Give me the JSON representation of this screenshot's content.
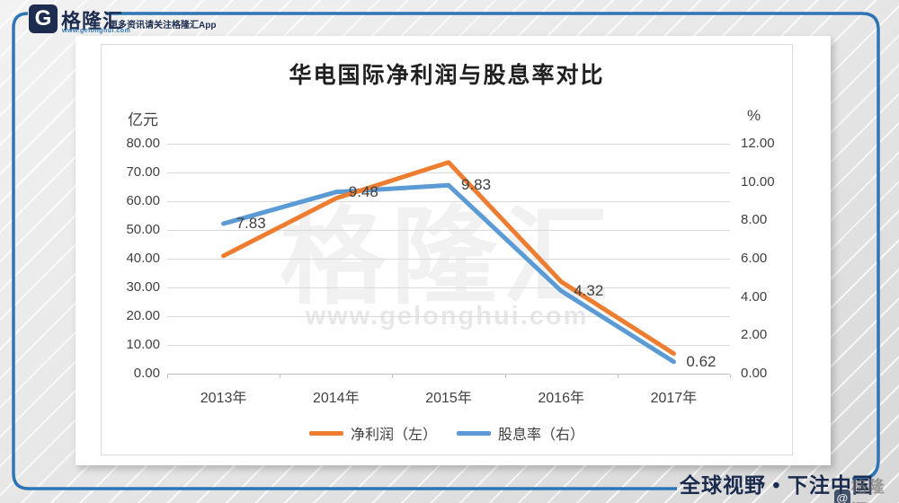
{
  "page": {
    "frame_color": "#2e75b6",
    "background": "#e7e7e7"
  },
  "header": {
    "logo_letter": "G",
    "brand": "格隆汇",
    "brand_url": "www.gelonghui.com",
    "tagline": "更多资讯请关注格隆汇App"
  },
  "watermark": {
    "brand": "格隆汇",
    "url": "www.gelonghui.com"
  },
  "footer": {
    "slogan": "全球视野 • 下注中国",
    "stamp_at": "@",
    "stamp_brand": "格隆汇"
  },
  "chart_data": {
    "type": "line",
    "title": "华电国际净利润与股息率对比",
    "categories": [
      "2013年",
      "2014年",
      "2015年",
      "2016年",
      "2017年"
    ],
    "series": [
      {
        "name": "净利润（左）",
        "axis": "left",
        "color": "#ED7D31",
        "values": [
          41.0,
          61.0,
          73.5,
          32.0,
          7.0
        ]
      },
      {
        "name": "股息率（右）",
        "axis": "right",
        "color": "#5B9BD5",
        "values": [
          7.83,
          9.48,
          9.83,
          4.32,
          0.62
        ],
        "point_labels": [
          "7.83",
          "9.48",
          "9.83",
          "4.32",
          "0.62"
        ]
      }
    ],
    "left_axis": {
      "title": "亿元",
      "min": 0,
      "max": 80,
      "step": 10,
      "ticks": [
        "80.00",
        "70.00",
        "60.00",
        "50.00",
        "40.00",
        "30.00",
        "20.00",
        "10.00",
        "0.00"
      ]
    },
    "right_axis": {
      "title": "%",
      "min": 0,
      "max": 12,
      "step": 2,
      "ticks": [
        "12.00",
        "10.00",
        "8.00",
        "6.00",
        "4.00",
        "2.00",
        "0.00"
      ]
    },
    "grid": true,
    "gridline_color": "#d9d9d9",
    "text_color": "#404040",
    "legend_position": "bottom"
  }
}
